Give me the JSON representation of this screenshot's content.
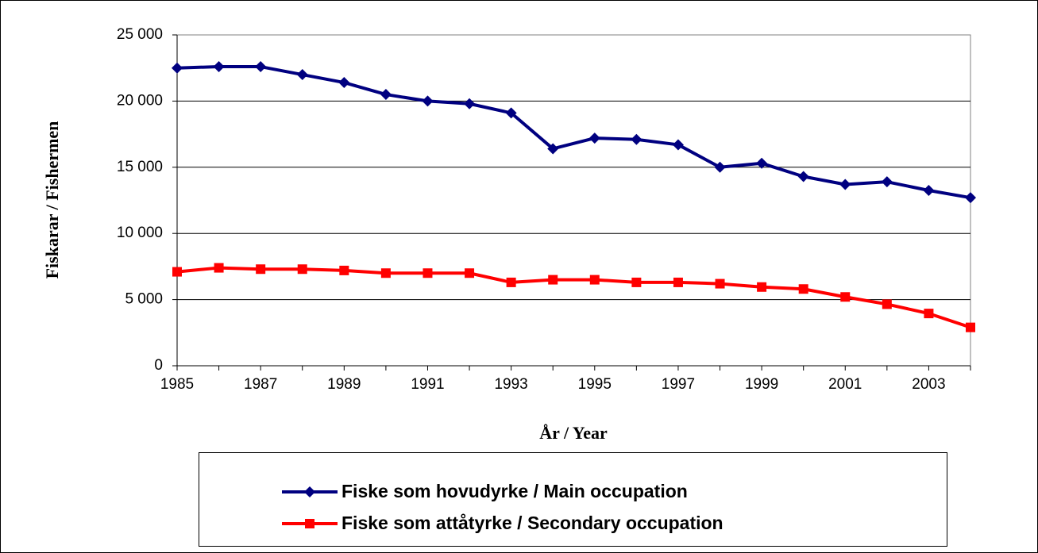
{
  "chart_data": {
    "type": "line",
    "xlabel": "År / Year",
    "ylabel": "Fiskarar / Fishermen",
    "x": [
      1985,
      1986,
      1987,
      1988,
      1989,
      1990,
      1991,
      1992,
      1993,
      1994,
      1995,
      1996,
      1997,
      1998,
      1999,
      2000,
      2001,
      2002,
      2003,
      2004
    ],
    "series": [
      {
        "name": "Fiske som hovudyrke / Main occupation",
        "color": "#000080",
        "marker": "diamond",
        "values": [
          22500,
          22600,
          22600,
          22000,
          21400,
          20500,
          20000,
          19800,
          19100,
          16400,
          17200,
          17100,
          16700,
          15000,
          15300,
          14300,
          13700,
          13900,
          13250,
          12700
        ]
      },
      {
        "name": "Fiske som attåtyrke / Secondary occupation",
        "color": "#ff0000",
        "marker": "square",
        "values": [
          7100,
          7400,
          7300,
          7300,
          7200,
          7000,
          7000,
          7000,
          6300,
          6500,
          6500,
          6300,
          6300,
          6200,
          5950,
          5800,
          5200,
          4650,
          3950,
          2900
        ]
      }
    ],
    "xlim": [
      1985,
      2004
    ],
    "xticks": [
      1985,
      1987,
      1989,
      1991,
      1993,
      1995,
      1997,
      1999,
      2001,
      2003
    ],
    "ylim": [
      0,
      25000
    ],
    "yticks": [
      0,
      {
        "value": 5000,
        "label": "5 000"
      },
      {
        "value": 10000,
        "label": "10 000"
      },
      {
        "value": 15000,
        "label": "15 000"
      },
      {
        "value": 20000,
        "label": "20 000"
      },
      {
        "value": 25000,
        "label": "25 000"
      }
    ],
    "grid": true
  }
}
